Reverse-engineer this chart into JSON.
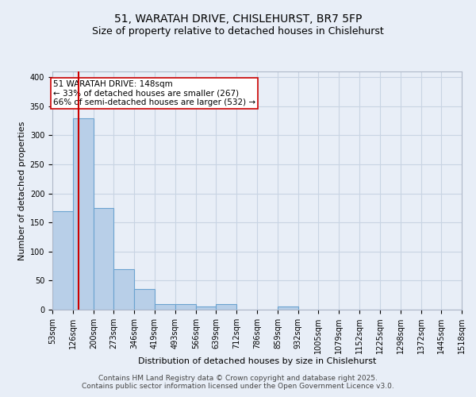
{
  "title1": "51, WARATAH DRIVE, CHISLEHURST, BR7 5FP",
  "title2": "Size of property relative to detached houses in Chislehurst",
  "xlabel": "Distribution of detached houses by size in Chislehurst",
  "ylabel": "Number of detached properties",
  "bin_edges": [
    53,
    126,
    200,
    273,
    346,
    419,
    493,
    566,
    639,
    712,
    786,
    859,
    932,
    1005,
    1079,
    1152,
    1225,
    1298,
    1372,
    1445,
    1518
  ],
  "bar_heights": [
    170,
    330,
    175,
    70,
    35,
    10,
    10,
    5,
    10,
    0,
    0,
    5,
    0,
    0,
    0,
    0,
    0,
    0,
    0,
    0
  ],
  "bar_color": "#b8cfe8",
  "bar_edgecolor": "#6ba3d0",
  "bar_linewidth": 0.8,
  "property_line_x": 148,
  "property_line_color": "#cc0000",
  "annotation_text": "51 WARATAH DRIVE: 148sqm\n← 33% of detached houses are smaller (267)\n66% of semi-detached houses are larger (532) →",
  "annotation_box_edgecolor": "#cc0000",
  "annotation_box_facecolor": "#ffffff",
  "ylim": [
    0,
    410
  ],
  "yticks": [
    0,
    50,
    100,
    150,
    200,
    250,
    300,
    350,
    400
  ],
  "grid_color": "#c8d4e3",
  "background_color": "#e8eef7",
  "footer_text": "Contains HM Land Registry data © Crown copyright and database right 2025.\nContains public sector information licensed under the Open Government Licence v3.0.",
  "title1_fontsize": 10,
  "title2_fontsize": 9,
  "xlabel_fontsize": 8,
  "ylabel_fontsize": 8,
  "tick_fontsize": 7,
  "annotation_fontsize": 7.5,
  "footer_fontsize": 6.5
}
